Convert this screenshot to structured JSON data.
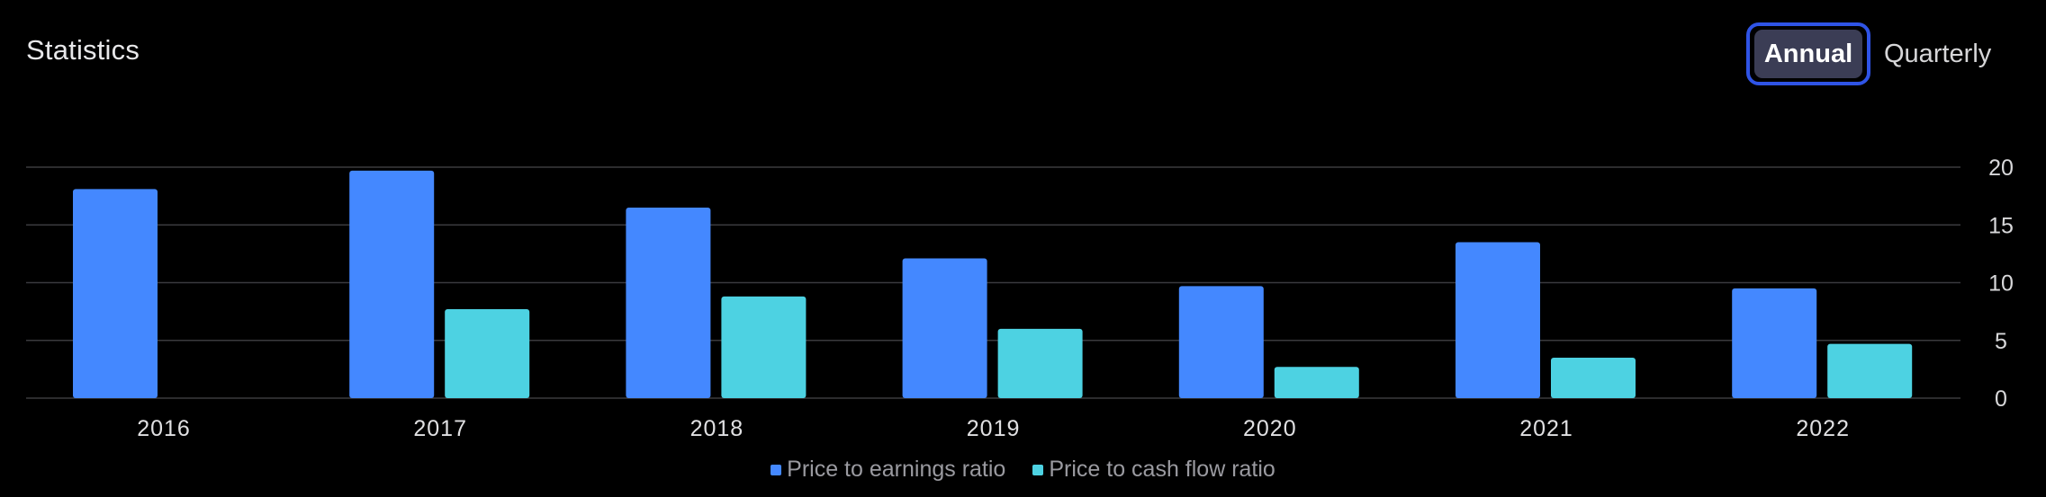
{
  "header": {
    "title": "Statistics",
    "toggle_options": [
      "Annual",
      "Quarterly"
    ],
    "selected": "Annual"
  },
  "colors": {
    "pe": "#4488ff",
    "pcf": "#4dd2e2",
    "grid": "#3a3a3e",
    "toggle_border": "#2f54e6"
  },
  "chart_data": {
    "type": "bar",
    "title": "",
    "xlabel": "",
    "ylabel": "",
    "categories": [
      "2016",
      "2017",
      "2018",
      "2019",
      "2020",
      "2021",
      "2022"
    ],
    "series": [
      {
        "name": "Price to earnings ratio",
        "values": [
          18.1,
          19.7,
          16.5,
          12.1,
          9.7,
          13.5,
          9.5
        ]
      },
      {
        "name": "Price to cash flow ratio",
        "values": [
          null,
          7.7,
          8.8,
          6.0,
          2.7,
          3.5,
          4.7
        ]
      }
    ],
    "ylim": [
      0,
      20
    ],
    "yticks": [
      "0",
      "5",
      "10",
      "15",
      "20"
    ],
    "grid": true,
    "legend": "bottom-center",
    "y_axis_position": "right"
  }
}
